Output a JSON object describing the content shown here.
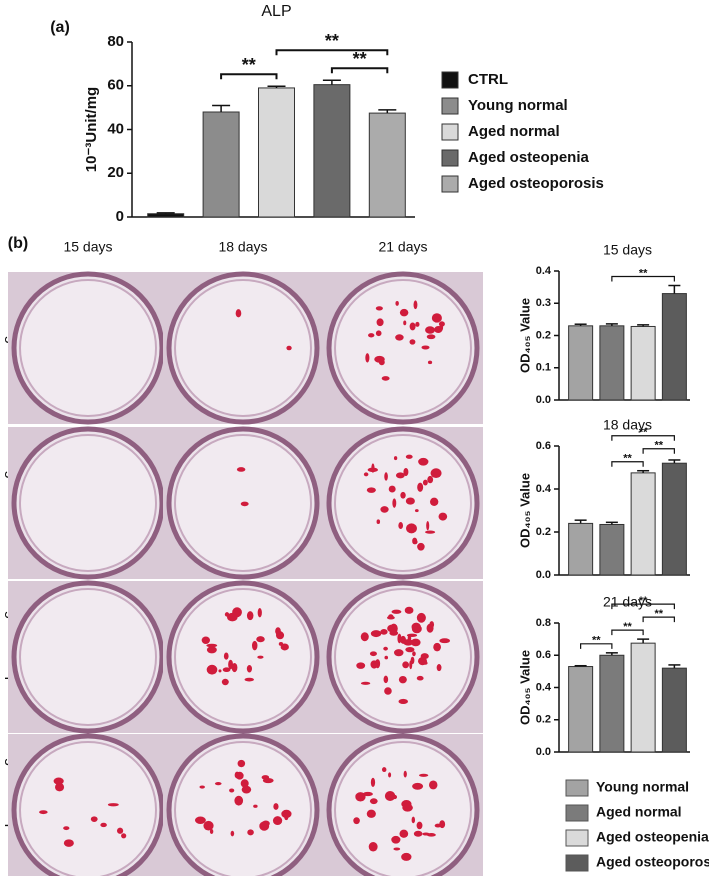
{
  "panel_labels": [
    "(a)",
    "(b)"
  ],
  "wells": {
    "columns": [
      "15 days",
      "18 days",
      "21 days"
    ],
    "rows": [
      "Young normal",
      "Aged normal",
      "Aged osteopenia",
      "Aged osteoporosis"
    ]
  },
  "od_legend": {
    "labels": [
      "Young normal",
      "Aged normal",
      "Aged osteopenia",
      "Aged osteoporosis"
    ],
    "colors": [
      "#a3a3a3",
      "#7b7b7b",
      "#dadada",
      "#5c5c5c"
    ]
  },
  "chart_data": [
    {
      "type": "bar",
      "title": "ALP",
      "ylabel": "10⁻³Unit/mg",
      "categories": [
        "CTRL",
        "Young normal",
        "Aged normal",
        "Aged osteopenia",
        "Aged osteoporosis"
      ],
      "colors": [
        "#111111",
        "#8c8c8c",
        "#d9d9d9",
        "#6a6a6a",
        "#ababab"
      ],
      "values": [
        1.5,
        48,
        59,
        60.5,
        47.5
      ],
      "errors": [
        0.4,
        3,
        0.8,
        2,
        1.5
      ],
      "ylim": [
        0,
        80
      ],
      "yticks": [
        0,
        20,
        40,
        60,
        80
      ],
      "annotations": [
        {
          "text": "**",
          "between": [
            "Young normal",
            "Aged normal"
          ]
        },
        {
          "text": "**",
          "between": [
            "Aged normal",
            "Aged osteoporosis"
          ]
        },
        {
          "text": "**",
          "between": [
            "Aged osteopenia",
            "Aged osteoporosis"
          ]
        }
      ]
    },
    {
      "type": "bar",
      "title": "15 days",
      "ylabel": "OD₄₀₅ Value",
      "values": [
        0.23,
        0.23,
        0.228,
        0.33
      ],
      "errors": [
        0.005,
        0.006,
        0.005,
        0.025
      ],
      "ylim": [
        0,
        0.4
      ],
      "yticks": [
        {
          "value": 0,
          "label": "0.0"
        },
        0.1,
        0.2,
        0.3,
        0.4
      ],
      "annotations": [
        {
          "text": "**",
          "between": [
            "Aged normal",
            "Aged osteoporosis"
          ]
        }
      ]
    },
    {
      "type": "bar",
      "title": "18 days",
      "ylabel": "OD₄₀₅ Value",
      "values": [
        0.24,
        0.235,
        0.475,
        0.52
      ],
      "errors": [
        0.015,
        0.01,
        0.01,
        0.015
      ],
      "ylim": [
        0,
        0.6
      ],
      "yticks": [
        {
          "value": 0,
          "label": "0.0"
        },
        0.2,
        0.4,
        0.6
      ],
      "annotations": [
        {
          "text": "**",
          "between": [
            "Aged normal",
            "Aged osteopenia"
          ]
        },
        {
          "text": "**",
          "between": [
            "Aged osteopenia",
            "Aged osteoporosis"
          ]
        },
        {
          "text": "**",
          "between": [
            "Aged normal",
            "Aged osteoporosis"
          ]
        }
      ]
    },
    {
      "type": "bar",
      "title": "21 days",
      "ylabel": "OD₄₀₅ Value",
      "values": [
        0.53,
        0.6,
        0.675,
        0.52
      ],
      "errors": [
        0.005,
        0.015,
        0.025,
        0.02
      ],
      "ylim": [
        0,
        0.8
      ],
      "yticks": [
        {
          "value": 0,
          "label": "0.0"
        },
        0.2,
        0.4,
        0.6,
        0.8
      ],
      "annotations": [
        {
          "text": "**",
          "between": [
            "Young normal",
            "Aged normal"
          ]
        },
        {
          "text": "**",
          "between": [
            "Aged normal",
            "Aged osteopenia"
          ]
        },
        {
          "text": "**",
          "between": [
            "Aged osteopenia",
            "Aged osteoporosis"
          ]
        },
        {
          "text": "**",
          "between": [
            "Aged normal",
            "Aged osteoporosis"
          ]
        }
      ]
    }
  ]
}
